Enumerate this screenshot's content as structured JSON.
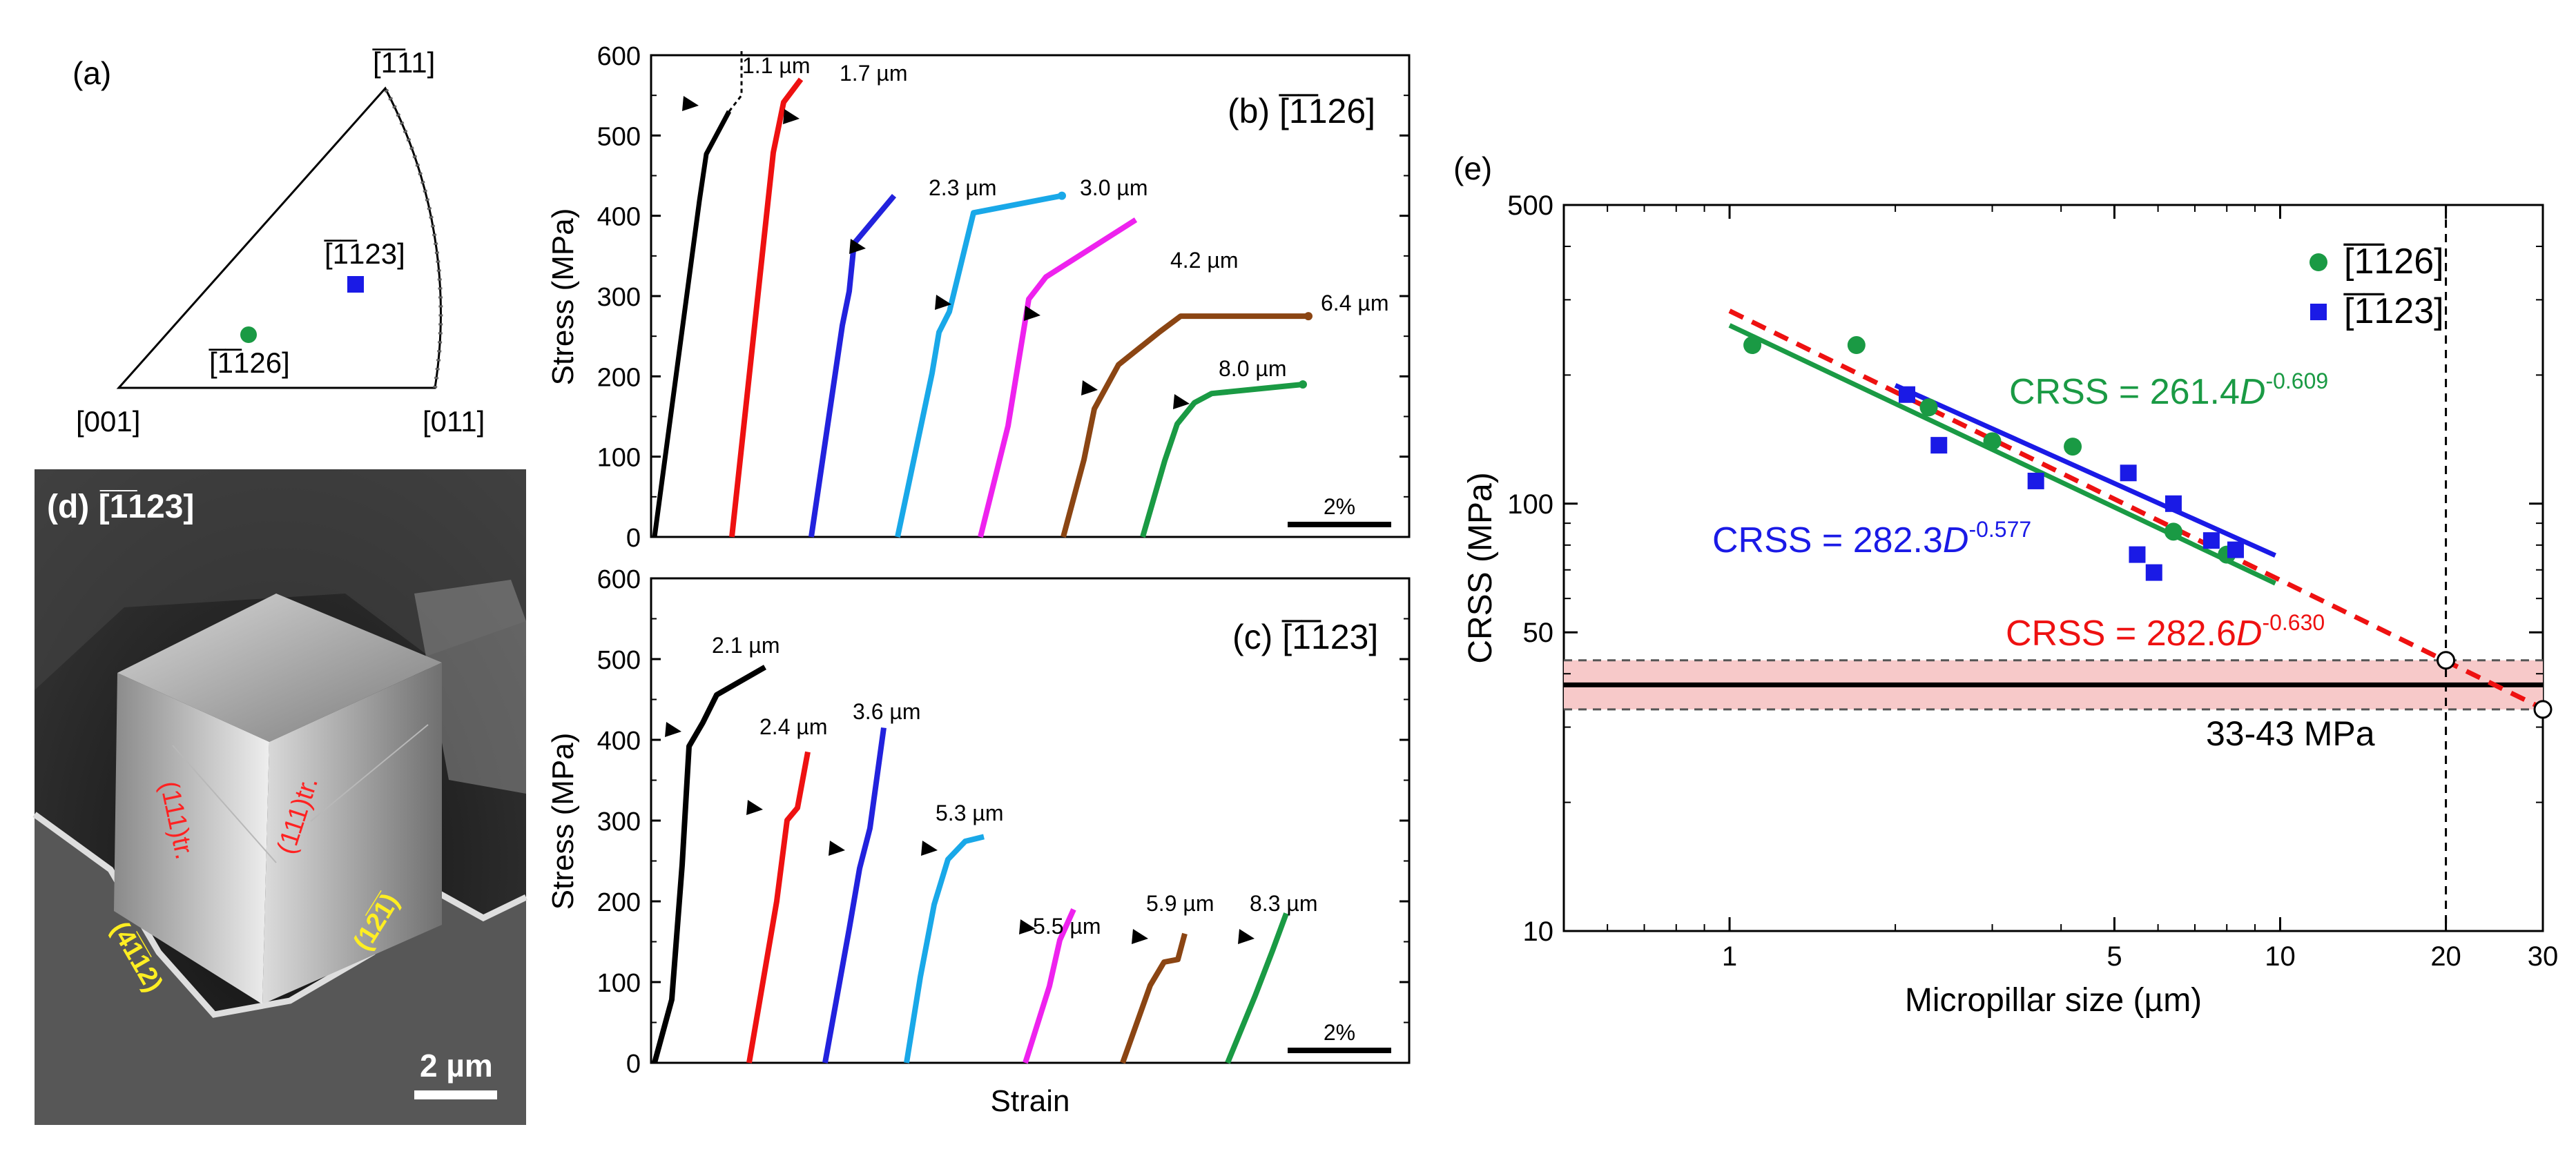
{
  "chart_data": [
    {
      "panel": "a",
      "type": "other",
      "description_label": "(a)",
      "corners": {
        "top": "[̅1̅11]",
        "left": "[001]",
        "right": "[011]"
      },
      "points": [
        {
          "label": "[̅1̅126]",
          "color": "#1a9a44",
          "marker": "circle"
        },
        {
          "label": "[̅1̅123]",
          "color": "#1a1ae6",
          "marker": "square"
        }
      ]
    },
    {
      "panel": "b",
      "type": "line",
      "title": "(b) [̅1̅126]",
      "ylabel": "Stress (MPa)",
      "xlabel": "",
      "ylim": [
        0,
        600
      ],
      "yticks": [
        0,
        100,
        200,
        300,
        400,
        500,
        600
      ],
      "scale_bar": "2%",
      "series": [
        {
          "name": "1.1 µm",
          "color": "#000000",
          "peak": 530
        },
        {
          "name": "1.7 µm",
          "color": "#ee1111",
          "peak": 570
        },
        {
          "name": "2.3 µm",
          "color": "#2222dd",
          "peak": 425
        },
        {
          "name": "3.0 µm",
          "color": "#19a8e8",
          "peak": 425
        },
        {
          "name": "4.2 µm",
          "color": "#ee22ee",
          "peak": 395
        },
        {
          "name": "6.4 µm",
          "color": "#8b4513",
          "peak": 275
        },
        {
          "name": "8.0 µm",
          "color": "#1a9a44",
          "peak": 190
        }
      ]
    },
    {
      "panel": "c",
      "type": "line",
      "title": "(c) [̅1̅123]",
      "ylabel": "Stress (MPa)",
      "xlabel": "Strain",
      "ylim": [
        0,
        600
      ],
      "yticks": [
        0,
        100,
        200,
        300,
        400,
        500,
        600
      ],
      "scale_bar": "2%",
      "series": [
        {
          "name": "2.1 µm",
          "color": "#000000",
          "peak": 490
        },
        {
          "name": "2.4 µm",
          "color": "#ee1111",
          "peak": 385
        },
        {
          "name": "3.6 µm",
          "color": "#2222dd",
          "peak": 415
        },
        {
          "name": "5.3 µm",
          "color": "#19a8e8",
          "peak": 280
        },
        {
          "name": "5.5 µm",
          "color": "#ee22ee",
          "peak": 190
        },
        {
          "name": "5.9 µm",
          "color": "#8b4513",
          "peak": 160
        },
        {
          "name": "8.3 µm",
          "color": "#1a9a44",
          "peak": 185
        }
      ]
    },
    {
      "panel": "d",
      "type": "image",
      "title": "(d) [̅1̅123]",
      "annotations": [
        "(111)tr.",
        "(111)tr.",
        "(4̅1̅12)",
        "(12̅1̅)"
      ],
      "scale_bar": "2 µm"
    },
    {
      "panel": "e",
      "type": "scatter",
      "title": "(e)",
      "xlabel": "Micropillar size (µm)",
      "ylabel": "CRSS (MPa)",
      "xscale": "log",
      "yscale": "log",
      "xlim": [
        0.5,
        30
      ],
      "ylim": [
        10,
        500
      ],
      "xticks": [
        1,
        5,
        10,
        20,
        30
      ],
      "yticks": [
        10,
        50,
        100,
        500
      ],
      "legend_position": "top-right",
      "series": [
        {
          "name": "[̅1̅126]",
          "color": "#1a9a44",
          "marker": "circle",
          "x": [
            1.1,
            1.7,
            2.3,
            3.0,
            4.2,
            6.4,
            8.0
          ],
          "y": [
            235,
            235,
            168,
            140,
            136,
            86,
            76
          ]
        },
        {
          "name": "[̅1̅123]",
          "color": "#1a1ae6",
          "marker": "square",
          "x": [
            2.1,
            2.4,
            3.6,
            5.3,
            5.5,
            5.9,
            6.4,
            7.5,
            8.3
          ],
          "y": [
            180,
            137,
            113,
            118,
            76,
            69,
            100,
            82,
            78
          ]
        }
      ],
      "fits": [
        {
          "label": "CRSS = 261.4",
          "exp": "-0.609",
          "a": 261.4,
          "b": -0.609,
          "color": "#1a9a44",
          "x_range": [
            1.0,
            9.8
          ],
          "style": "solid"
        },
        {
          "label": "CRSS = 282.3",
          "exp": "-0.577",
          "a": 282.3,
          "b": -0.577,
          "color": "#1a1ae6",
          "x_range": [
            2.0,
            9.8
          ],
          "style": "solid"
        },
        {
          "label": "CRSS = 282.6",
          "exp": "-0.630",
          "a": 282.6,
          "b": -0.63,
          "color": "#ee1111",
          "x_range": [
            1.0,
            30
          ],
          "style": "dashed"
        }
      ],
      "band": {
        "label": "33-43 MPa",
        "low": 33,
        "high": 43
      },
      "open_points": [
        {
          "x": 20,
          "y": 43
        },
        {
          "x": 30,
          "y": 33
        }
      ],
      "ref_line_x": 20
    }
  ]
}
